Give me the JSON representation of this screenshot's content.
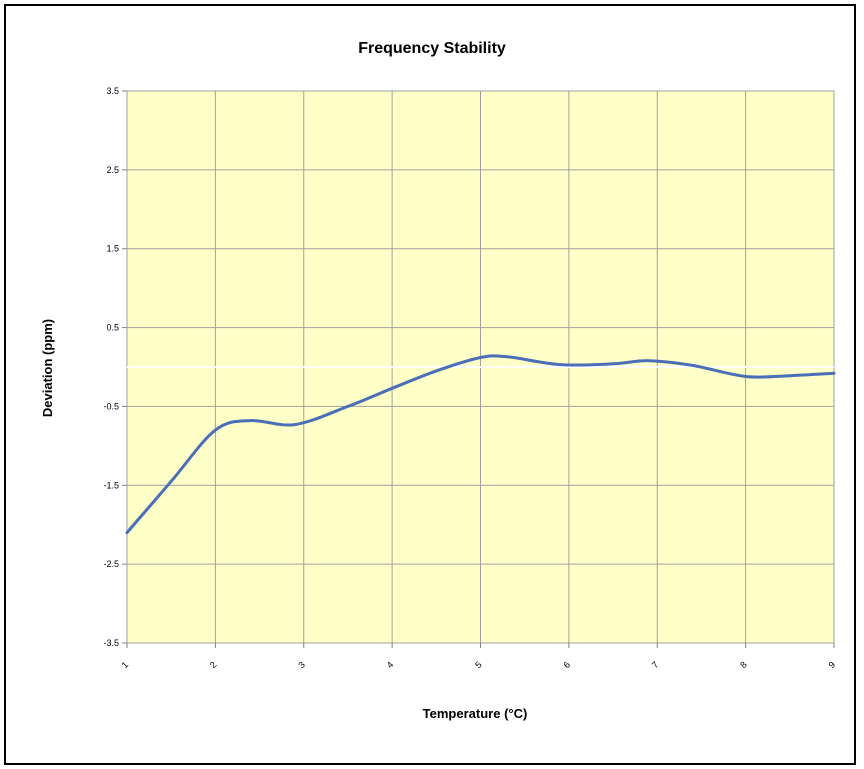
{
  "chart_data": {
    "type": "line",
    "title": "Frequency Stability",
    "xlabel": "Temperature (°C)",
    "ylabel": "Deviation (ppm)",
    "x_ticks": [
      "1",
      "2",
      "3",
      "4",
      "5",
      "6",
      "7",
      "8",
      "9"
    ],
    "y_ticks": [
      "3.5",
      "2.5",
      "1.5",
      "0.5",
      "-0.5",
      "-1.5",
      "-2.5",
      "-3.5"
    ],
    "xlim": [
      1,
      9
    ],
    "ylim": [
      -3.5,
      3.5
    ],
    "grid": true,
    "legend": "none",
    "series": [
      {
        "x": [
          1,
          1.5,
          2,
          2.4,
          2.9,
          3.5,
          4,
          4.5,
          5,
          5.3,
          5.9,
          6.5,
          6.9,
          7.4,
          8,
          8.5,
          9
        ],
        "values": [
          -2.1,
          -1.45,
          -0.8,
          -0.68,
          -0.73,
          -0.5,
          -0.27,
          -0.05,
          0.12,
          0.13,
          0.03,
          0.04,
          0.08,
          0.02,
          -0.12,
          -0.11,
          -0.08
        ]
      }
    ],
    "colors": {
      "line": "#4a6fb8",
      "plot_background": "#ffffc8",
      "grid": "#a0a0a0",
      "zero_line": "#ffffff"
    }
  }
}
